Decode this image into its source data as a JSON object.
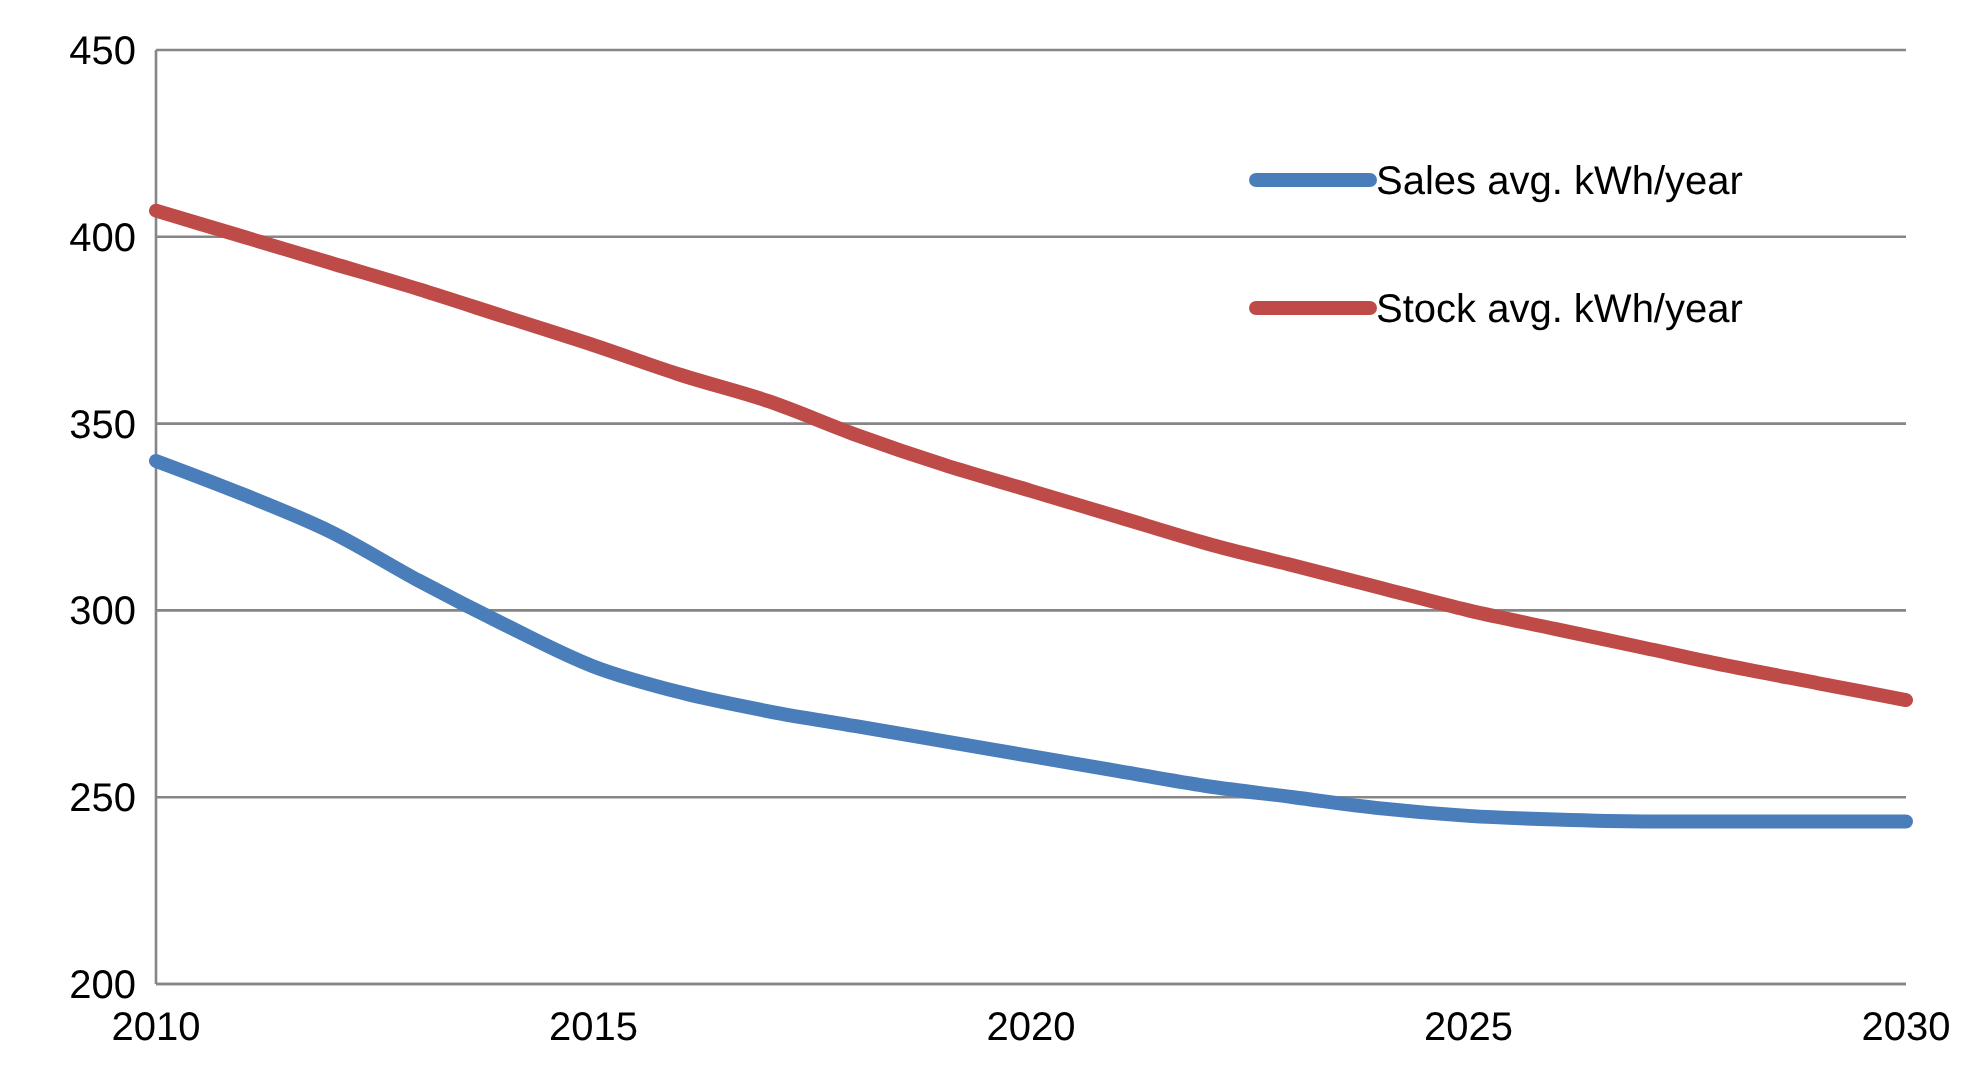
{
  "chart_data": {
    "type": "line",
    "x": [
      2010,
      2011,
      2012,
      2013,
      2014,
      2015,
      2016,
      2017,
      2018,
      2019,
      2020,
      2021,
      2022,
      2023,
      2024,
      2025,
      2026,
      2027,
      2028,
      2029,
      2030
    ],
    "series": [
      {
        "name": "Sales avg. kWh/year",
        "color": "#4a7ebb",
        "values": [
          340,
          331,
          321,
          308,
          296,
          285,
          278,
          273,
          269,
          265,
          261,
          257,
          253,
          250,
          247,
          245,
          244,
          243.5,
          243.5,
          243.5,
          243.5
        ]
      },
      {
        "name": "Stock avg. kWh/year",
        "color": "#be4b48",
        "values": [
          407,
          400,
          393,
          386,
          378.5,
          371,
          363,
          356,
          347,
          339,
          332,
          325,
          318,
          312,
          306,
          300,
          295,
          290,
          285,
          280.5,
          276
        ]
      }
    ],
    "xlim": [
      2010,
      2030
    ],
    "xticks": [
      2010,
      2015,
      2020,
      2025,
      2030
    ],
    "ylim": [
      200,
      450
    ],
    "yticks": [
      200,
      250,
      300,
      350,
      400,
      450
    ],
    "grid": "y",
    "legend": "top right",
    "marker": "none",
    "line_style": "solid"
  }
}
